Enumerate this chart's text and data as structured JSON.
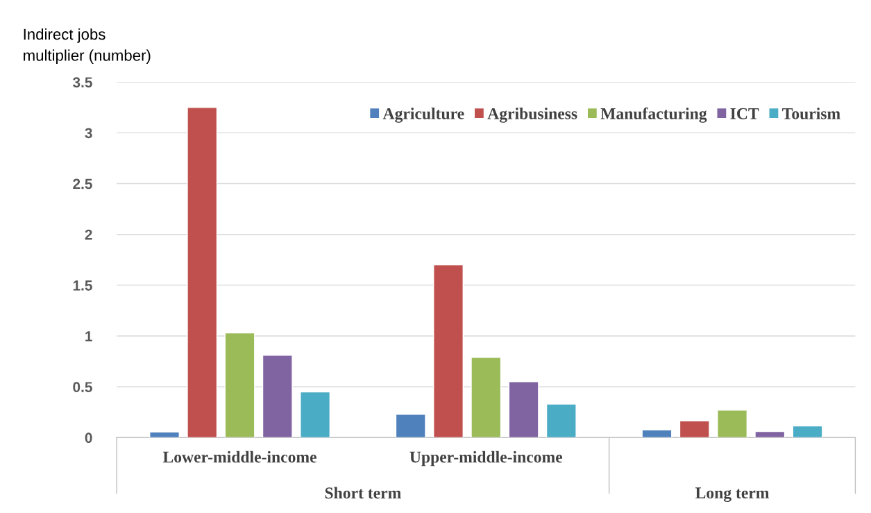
{
  "chart_data": {
    "type": "bar",
    "ylabel": "Indirect jobs\nmultiplier (number)",
    "categories": [
      "Lower-middle-income",
      "Upper-middle-income",
      null
    ],
    "series": [
      {
        "name": "Agriculture",
        "color": "#4f81bd",
        "values": [
          0.055,
          0.23,
          0.075
        ]
      },
      {
        "name": "Agribusiness",
        "color": "#c0504d",
        "values": [
          3.25,
          1.7,
          0.165
        ]
      },
      {
        "name": "Manufacturing",
        "color": "#9bbb59",
        "values": [
          1.03,
          0.79,
          0.27
        ]
      },
      {
        "name": "ICT",
        "color": "#8064a2",
        "values": [
          0.81,
          0.55,
          0.06
        ]
      },
      {
        "name": "Tourism",
        "color": "#4bacc6",
        "values": [
          0.45,
          0.33,
          0.115
        ]
      }
    ],
    "annotations": [
      "Short term",
      "Long term"
    ],
    "ylim": [
      0,
      3.5
    ],
    "yticks": [
      0,
      0.5,
      1,
      1.5,
      2,
      2.5,
      3,
      3.5
    ],
    "grid": "y",
    "legend": "top right"
  }
}
